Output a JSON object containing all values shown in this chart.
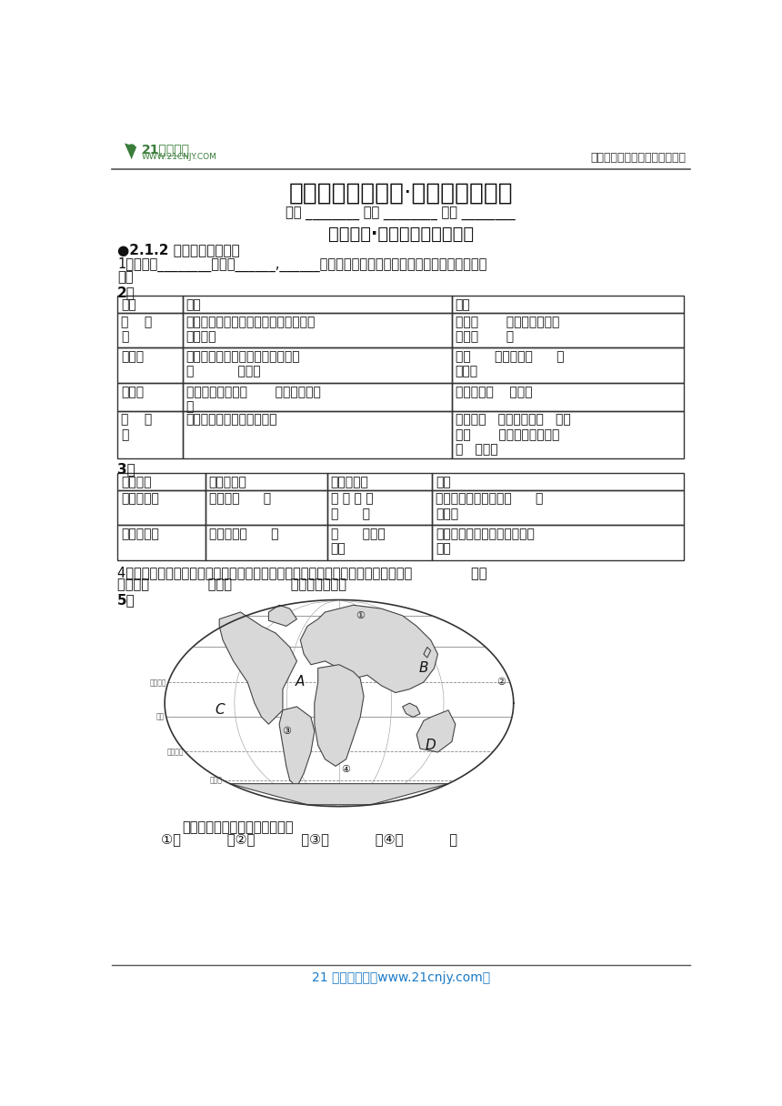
{
  "bg_color": "#ffffff",
  "header_right": "中小学教育资源及组卷应用平台",
  "main_title": "人文地理（上册）·课时知识点默写",
  "class_line": "班级 ________ 姓名 ________ 学号 ________",
  "unit_title": "第二单元·人类共同生活的世界",
  "section_title": "●2.1.2 海洋对人类的影响",
  "q1_line1": "1、海洋的________部分是______,______是海洋的边缘部分。洋远离大陆，平均水深超过",
  "q1_line2": "米。",
  "q2_label": "2、",
  "table1_headers": [
    "大洋",
    "位置",
    "特点"
  ],
  "table1_rows": [
    [
      "（    ）\n洋",
      "被亚洲、大洋洲、北美洲、南美洲、南\n极洲包围",
      "面积（       ）、岛屿最多、\n水体（       ）"
    ],
    [
      "大西洋",
      "被欧洲、非洲、北美洲、南美洲、\n（           ）包围",
      "呈（      ）形，跨（      ）\n度最广"
    ],
    [
      "印度洋",
      "被亚洲、非洲、（       ）、南极洲包\n围",
      "全部都在（    ）半球"
    ],
    [
      "（    ）\n洋",
      "被欧洲、北美洲、亚洲包围",
      "面积最（   ），纬度最（   ），\n跨（       ）最广，全部都在\n（   ）半球"
    ]
  ],
  "q3_label": "3、",
  "table2_headers": [
    "运河名称",
    "两侧的大洲",
    "沟通的海洋",
    "意义"
  ],
  "table2_rows": [
    [
      "苏伊士运河",
      "非洲与（      ）",
      "地 中 海 与\n（      ）",
      "大大缩短了大西洋到（      ）\n的距离"
    ],
    [
      "巴拿马运河",
      "北美洲与（      ）",
      "（      ）与大\n平洋",
      "大大缩短了大西洋到太平洋的\n距离"
    ]
  ],
  "q4_line1": "4、海峡往往是海上的交通要道，具有极其重要的战略地位。例如，位于东南亚的（              ），",
  "q4_line2": "是沟通（              ）和（              ）的天然水道。",
  "q5_label": "5、",
  "map_label": "写出图中数字所表示的大洋名称",
  "map_footer": "①（           ）②（           ）③（           ）④（           ）",
  "footer_text": "21 世纪教育网（www.21cnjy.com）"
}
